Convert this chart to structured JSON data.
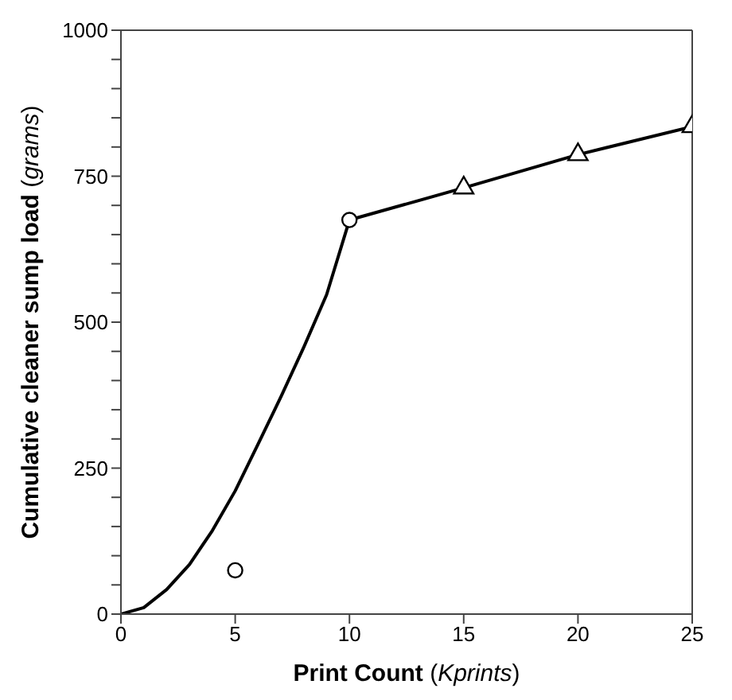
{
  "chart_data": {
    "type": "line",
    "xlabel": "Print Count (Kprints)",
    "ylabel": "Cumulative cleaner sump load (grams)",
    "series": [
      {
        "color": "#000000",
        "marker": "none",
        "x": [
          0,
          1,
          2,
          3,
          4,
          5,
          6,
          7,
          8,
          9,
          10,
          15,
          20,
          25
        ],
        "values": [
          0,
          11,
          42,
          85,
          143,
          211,
          291,
          372,
          457,
          547,
          675,
          730,
          787,
          835
        ]
      },
      {
        "type": "scatter",
        "color": "#000000",
        "marker": "circle",
        "x": [
          5,
          10
        ],
        "values": [
          75,
          675
        ]
      },
      {
        "type": "scatter",
        "color": "#000000",
        "marker": "triangle",
        "x": [
          15,
          20,
          25
        ],
        "values": [
          730,
          787,
          835
        ]
      }
    ],
    "xlim": [
      0,
      25
    ],
    "xticks": [
      0,
      5,
      10,
      15,
      20,
      25
    ],
    "ylim": [
      0,
      1000
    ],
    "yticks": [
      0,
      {
        "value": 50,
        "label": null
      },
      {
        "value": 100,
        "label": null
      },
      {
        "value": 150,
        "label": null
      },
      {
        "value": 200,
        "label": null
      },
      250,
      {
        "value": 300,
        "label": null
      },
      {
        "value": 350,
        "label": null
      },
      {
        "value": 400,
        "label": null
      },
      {
        "value": 450,
        "label": null
      },
      500,
      {
        "value": 550,
        "label": null
      },
      {
        "value": 600,
        "label": null
      },
      {
        "value": 650,
        "label": null
      },
      {
        "value": 700,
        "label": null
      },
      750,
      {
        "value": 800,
        "label": null
      },
      {
        "value": 850,
        "label": null
      },
      {
        "value": 900,
        "label": null
      },
      {
        "value": 950,
        "label": null
      },
      1000
    ],
    "grid": false
  }
}
